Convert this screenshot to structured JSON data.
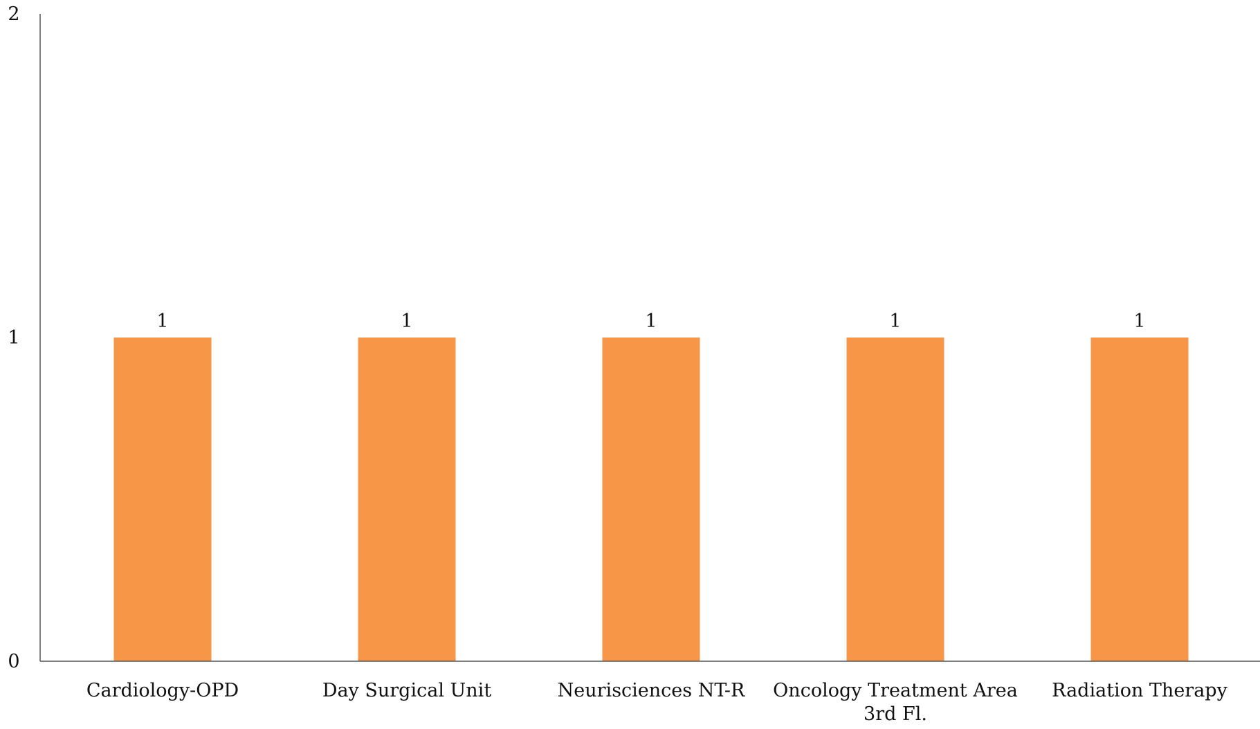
{
  "chart_data": {
    "type": "bar",
    "title": "",
    "xlabel": "",
    "ylabel": "",
    "categories": [
      [
        "Cardiology-OPD"
      ],
      [
        "Day Surgical Unit"
      ],
      [
        "Neurisciences NT-R"
      ],
      [
        "Oncology Treatment Area",
        "3rd Fl."
      ],
      [
        "Radiation Therapy"
      ]
    ],
    "values": [
      1,
      1,
      1,
      1,
      1
    ],
    "ylim": [
      0,
      2
    ],
    "yticks": [
      "0",
      "1",
      "2"
    ],
    "data_labels": [
      "1",
      "1",
      "1",
      "1",
      "1"
    ],
    "grid": false,
    "legend": "none",
    "bar_color": "#F79646"
  }
}
